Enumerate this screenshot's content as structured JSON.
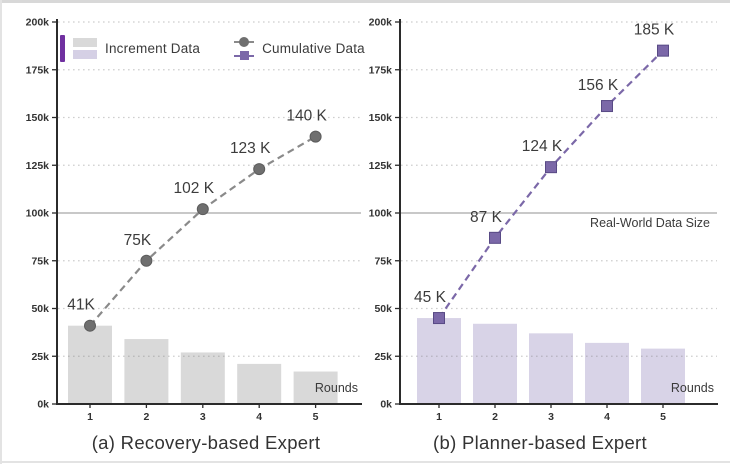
{
  "legend": {
    "increment_label": "Increment Data",
    "cumulative_label": "Cumulative Data",
    "accent_bar_color": "#7030a0",
    "increment_swatch_colors": [
      "#d9d9d9",
      "#d5d0e5"
    ],
    "cumulative_marker_colors": [
      "#6f6f6f",
      "#7b68a8"
    ]
  },
  "chart_data": [
    {
      "type": "bar+line",
      "title": "(a) Recovery-based Expert",
      "xlabel": "Rounds",
      "ylabel": "",
      "categories": [
        "1",
        "2",
        "3",
        "4",
        "5"
      ],
      "series": [
        {
          "name": "Increment Data",
          "type": "bar",
          "values_k": [
            41,
            34,
            27,
            21,
            17
          ]
        },
        {
          "name": "Cumulative Data",
          "type": "line",
          "values_k": [
            41,
            75,
            102,
            123,
            140
          ],
          "point_labels": [
            "41K",
            "75K",
            "102 K",
            "123 K",
            "140 K"
          ]
        }
      ],
      "ylim_k": [
        0,
        200
      ],
      "y_tick_labels": [
        "0k",
        "25k",
        "50k",
        "75k",
        "100k",
        "125k",
        "150k",
        "175k",
        "200k"
      ],
      "grid": "dotted-horizontal",
      "legend_position": "upper-left",
      "reference_line": {
        "y_k": 100,
        "label": ""
      },
      "style": {
        "bar_color": "#d9d9d9",
        "line_color": "#8a8a8a",
        "marker": "circle",
        "marker_fill": "#6f6f6f",
        "marker_edge": "#5c5c5c"
      }
    },
    {
      "type": "bar+line",
      "title": "(b) Planner-based Expert",
      "xlabel": "Rounds",
      "ylabel": "",
      "categories": [
        "1",
        "2",
        "3",
        "4",
        "5"
      ],
      "series": [
        {
          "name": "Increment Data",
          "type": "bar",
          "values_k": [
            45,
            42,
            37,
            32,
            29
          ]
        },
        {
          "name": "Cumulative Data",
          "type": "line",
          "values_k": [
            45,
            87,
            124,
            156,
            185
          ],
          "point_labels": [
            "45 K",
            "87 K",
            "124 K",
            "156 K",
            "185 K"
          ]
        }
      ],
      "ylim_k": [
        0,
        200
      ],
      "y_tick_labels": [
        "0k",
        "25k",
        "50k",
        "75k",
        "100k",
        "125k",
        "150k",
        "175k",
        "200k"
      ],
      "grid": "dotted-horizontal",
      "legend_position": "none",
      "reference_line": {
        "y_k": 100,
        "label": "Real-World Data Size"
      },
      "style": {
        "bar_color": "#d8d3e7",
        "line_color": "#7b68a8",
        "marker": "square",
        "marker_fill": "#7b68a8",
        "marker_edge": "#584a85"
      }
    }
  ]
}
